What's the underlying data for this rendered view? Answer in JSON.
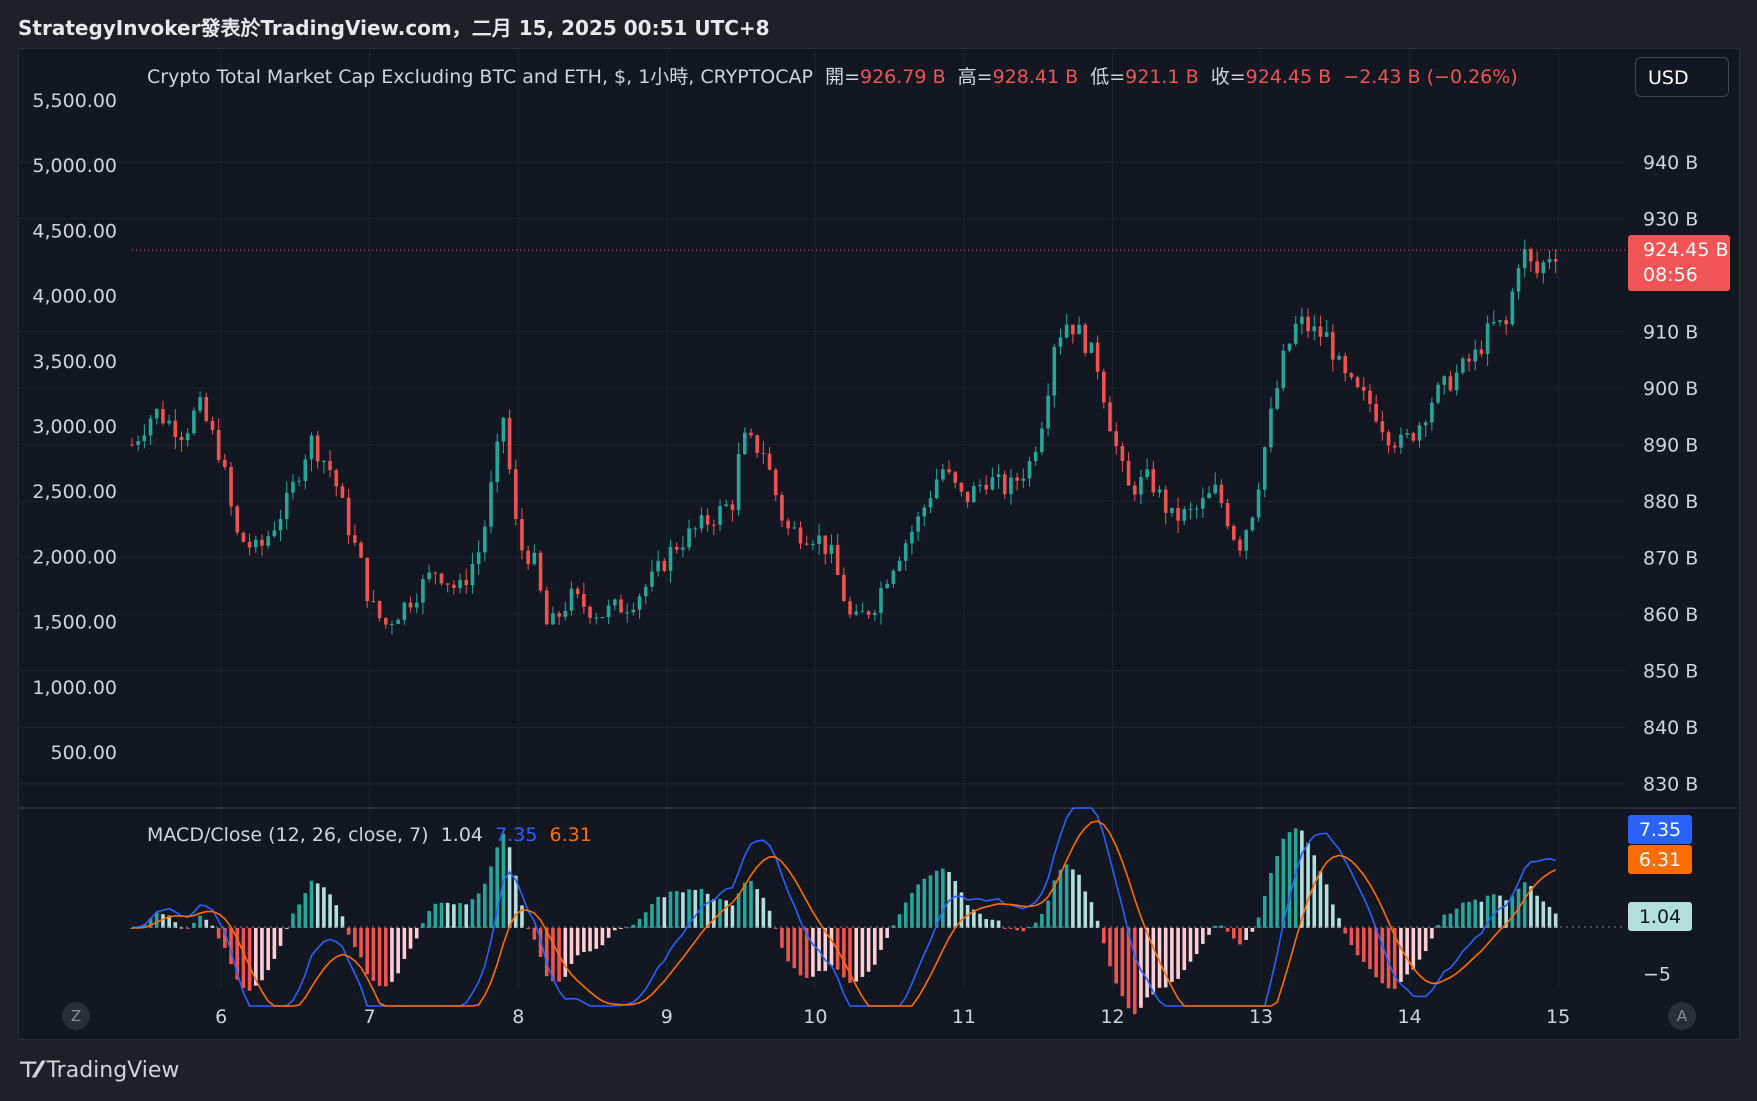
{
  "header": {
    "title": "StrategyInvoker發表於TradingView.com，二月 15, 2025 00:51 UTC+8"
  },
  "currency_button": "USD",
  "legend": {
    "name": "Crypto Total Market Cap Excluding BTC and ETH, $, 1小時, CRYPTOCAP",
    "open_label": "開=",
    "open": "926.79 B",
    "high_label": "高=",
    "high": "928.41 B",
    "low_label": "低=",
    "low": "921.1 B",
    "close_label": "收=",
    "close": "924.45 B",
    "change": "−2.43 B (−0.26%)"
  },
  "price_tag": {
    "value": "924.45 B",
    "countdown": "08:56",
    "color": "#f05454"
  },
  "macd_legend": {
    "name": "MACD/Close (12, 26, close, 7)",
    "hist": "1.04",
    "macd": "7.35",
    "signal": "6.31"
  },
  "macd_tags": [
    {
      "text": "7.35",
      "bg": "#2962ff",
      "fg": "#ffffff",
      "value": 7.35
    },
    {
      "text": "6.31",
      "bg": "#ff6d00",
      "fg": "#ffffff",
      "value": 6.31
    },
    {
      "text": "1.04",
      "bg": "#b2dfdb",
      "fg": "#131722",
      "value": 1.04
    }
  ],
  "footer": {
    "logo": "TradingView",
    "z_button": "Z",
    "a_button": "A"
  },
  "colors": {
    "up": "#26a69a",
    "down": "#ef5350",
    "hist_up_strong": "#26a69a",
    "hist_up_weak": "#b2dfdb",
    "hist_down_strong": "#ef5350",
    "hist_down_weak": "#ffcdd2",
    "macd": "#2962ff",
    "signal": "#ff6d00"
  },
  "chart_data": [
    {
      "type": "candlestick",
      "title": "Crypto Total Market Cap Excluding BTC and ETH",
      "x_ticks": [
        "6",
        "7",
        "8",
        "9",
        "10",
        "11",
        "12",
        "13",
        "14",
        "15"
      ],
      "x_range": [
        5.4,
        15.45
      ],
      "right_axis": {
        "ticks": [
          "940 B",
          "930 B",
          "910 B",
          "900 B",
          "890 B",
          "880 B",
          "870 B",
          "860 B",
          "850 B",
          "840 B",
          "830 B"
        ],
        "values": [
          940,
          930,
          910,
          900,
          890,
          880,
          870,
          860,
          850,
          840,
          830
        ],
        "range": [
          828,
          951
        ]
      },
      "left_axis": {
        "ticks": [
          "5,500.00",
          "5,000.00",
          "4,500.00",
          "4,000.00",
          "3,500.00",
          "3,000.00",
          "2,500.00",
          "2,000.00",
          "1,500.00",
          "1,000.00",
          "500.00"
        ],
        "values": [
          5500,
          5000,
          4500,
          4000,
          3500,
          3000,
          2500,
          2000,
          1500,
          1000,
          500
        ]
      },
      "last_price": 924.45,
      "path_points": [
        [
          5.4,
          890
        ],
        [
          5.55,
          896
        ],
        [
          5.75,
          892
        ],
        [
          5.85,
          897
        ],
        [
          6.0,
          888
        ],
        [
          6.1,
          874
        ],
        [
          6.25,
          871
        ],
        [
          6.45,
          880
        ],
        [
          6.6,
          891
        ],
        [
          6.75,
          885
        ],
        [
          6.85,
          876
        ],
        [
          6.95,
          868
        ],
        [
          7.0,
          862
        ],
        [
          7.1,
          858
        ],
        [
          7.25,
          862
        ],
        [
          7.45,
          868
        ],
        [
          7.6,
          864
        ],
        [
          7.75,
          872
        ],
        [
          7.9,
          895
        ],
        [
          8.0,
          872
        ],
        [
          8.1,
          870
        ],
        [
          8.2,
          857
        ],
        [
          8.35,
          863
        ],
        [
          8.55,
          860
        ],
        [
          8.75,
          862
        ],
        [
          8.9,
          866
        ],
        [
          9.05,
          872
        ],
        [
          9.25,
          876
        ],
        [
          9.45,
          880
        ],
        [
          9.5,
          891
        ],
        [
          9.65,
          889
        ],
        [
          9.8,
          875
        ],
        [
          10.0,
          874
        ],
        [
          10.1,
          871
        ],
        [
          10.25,
          858
        ],
        [
          10.4,
          862
        ],
        [
          10.5,
          868
        ],
        [
          10.7,
          877
        ],
        [
          10.85,
          886
        ],
        [
          11.0,
          880
        ],
        [
          11.15,
          884
        ],
        [
          11.3,
          882
        ],
        [
          11.45,
          887
        ],
        [
          11.55,
          897
        ],
        [
          11.6,
          908
        ],
        [
          11.7,
          912
        ],
        [
          11.8,
          909
        ],
        [
          11.9,
          904
        ],
        [
          12.0,
          892
        ],
        [
          12.1,
          882
        ],
        [
          12.25,
          884
        ],
        [
          12.4,
          877
        ],
        [
          12.55,
          878
        ],
        [
          12.7,
          882
        ],
        [
          12.85,
          872
        ],
        [
          12.95,
          879
        ],
        [
          13.05,
          893
        ],
        [
          13.15,
          905
        ],
        [
          13.25,
          912
        ],
        [
          13.35,
          910
        ],
        [
          13.45,
          909
        ],
        [
          13.55,
          902
        ],
        [
          13.65,
          899
        ],
        [
          13.75,
          897
        ],
        [
          13.85,
          892
        ],
        [
          13.95,
          890
        ],
        [
          14.05,
          893
        ],
        [
          14.15,
          898
        ],
        [
          14.3,
          902
        ],
        [
          14.45,
          906
        ],
        [
          14.55,
          911
        ],
        [
          14.65,
          911
        ],
        [
          14.75,
          925
        ],
        [
          14.85,
          920
        ],
        [
          14.95,
          924
        ],
        [
          15.0,
          924
        ]
      ]
    },
    {
      "type": "macd",
      "title": "MACD/Close (12, 26, close, 7)",
      "params": {
        "fast": 12,
        "slow": 26,
        "source": "close",
        "signal": 7
      },
      "y_ticks": [
        "−5"
      ],
      "y_range": [
        -7,
        12
      ],
      "last": {
        "histogram": 1.04,
        "macd": 7.35,
        "signal": 6.31
      }
    }
  ]
}
